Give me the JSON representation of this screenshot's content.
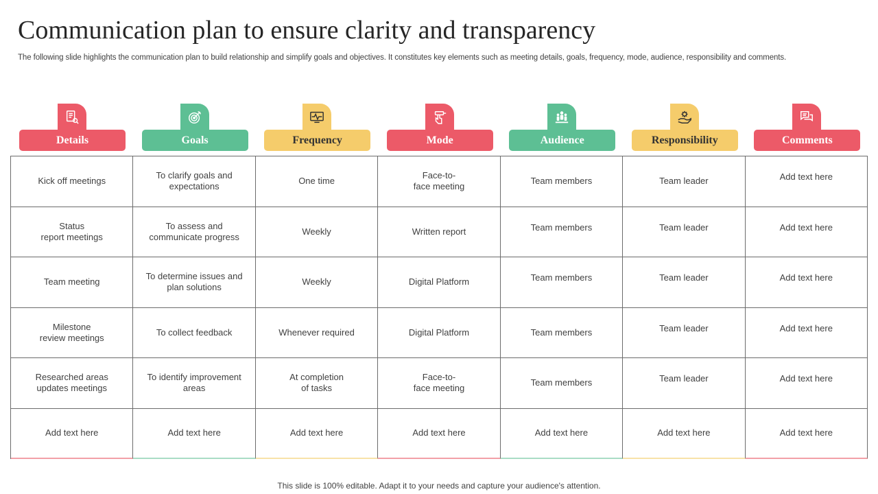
{
  "title": "Communication plan to ensure clarity and transparency",
  "subtitle": "The following slide highlights the communication plan to build relationship and simplify goals and objectives. It constitutes key elements such as meeting details, goals, frequency, mode, audience, responsibility and comments.",
  "colors": {
    "red": "#ec5a68",
    "green": "#5dbf94",
    "yellow": "#f5cc6b"
  },
  "columns": [
    {
      "label": "Details",
      "icon": "document-search-icon",
      "color": "red"
    },
    {
      "label": "Goals",
      "icon": "target-icon",
      "color": "green"
    },
    {
      "label": "Frequency",
      "icon": "monitor-pulse-icon",
      "color": "yellow"
    },
    {
      "label": "Mode",
      "icon": "hand-megaphone-icon",
      "color": "red"
    },
    {
      "label": "Audience",
      "icon": "group-icon",
      "color": "green"
    },
    {
      "label": "Responsibility",
      "icon": "hand-gear-icon",
      "color": "yellow"
    },
    {
      "label": "Comments",
      "icon": "chat-bubbles-icon",
      "color": "red"
    }
  ],
  "rows": [
    [
      "Kick off meetings",
      "To clarify goals and\nexpectations",
      "One time",
      "Face-to-\nface meeting",
      "Team members",
      "Team leader",
      "Add text here"
    ],
    [
      "Status\nreport meetings",
      "To assess and\ncommunicate progress",
      "Weekly",
      "Written report",
      "Team members",
      "Team leader",
      "Add text here"
    ],
    [
      "Team meeting",
      "To determine issues and\nplan solutions",
      "Weekly",
      "Digital Platform",
      "Team members",
      "Team leader",
      "Add text here"
    ],
    [
      "Milestone\nreview meetings",
      "To collect feedback",
      "Whenever required",
      "Digital Platform",
      "Team members",
      "Team leader",
      "Add text here"
    ],
    [
      "Researched areas\nupdates meetings",
      "To identify improvement\nareas",
      "At completion\nof tasks",
      "Face-to-\nface meeting",
      "Team members",
      "Team leader",
      "Add text here"
    ],
    [
      "Add text here",
      "Add text here",
      "Add text here",
      "Add text here",
      "Add text here",
      "Add text here",
      "Add text here"
    ]
  ],
  "footer": "This slide is 100% editable. Adapt it to your needs and capture your audience's attention."
}
